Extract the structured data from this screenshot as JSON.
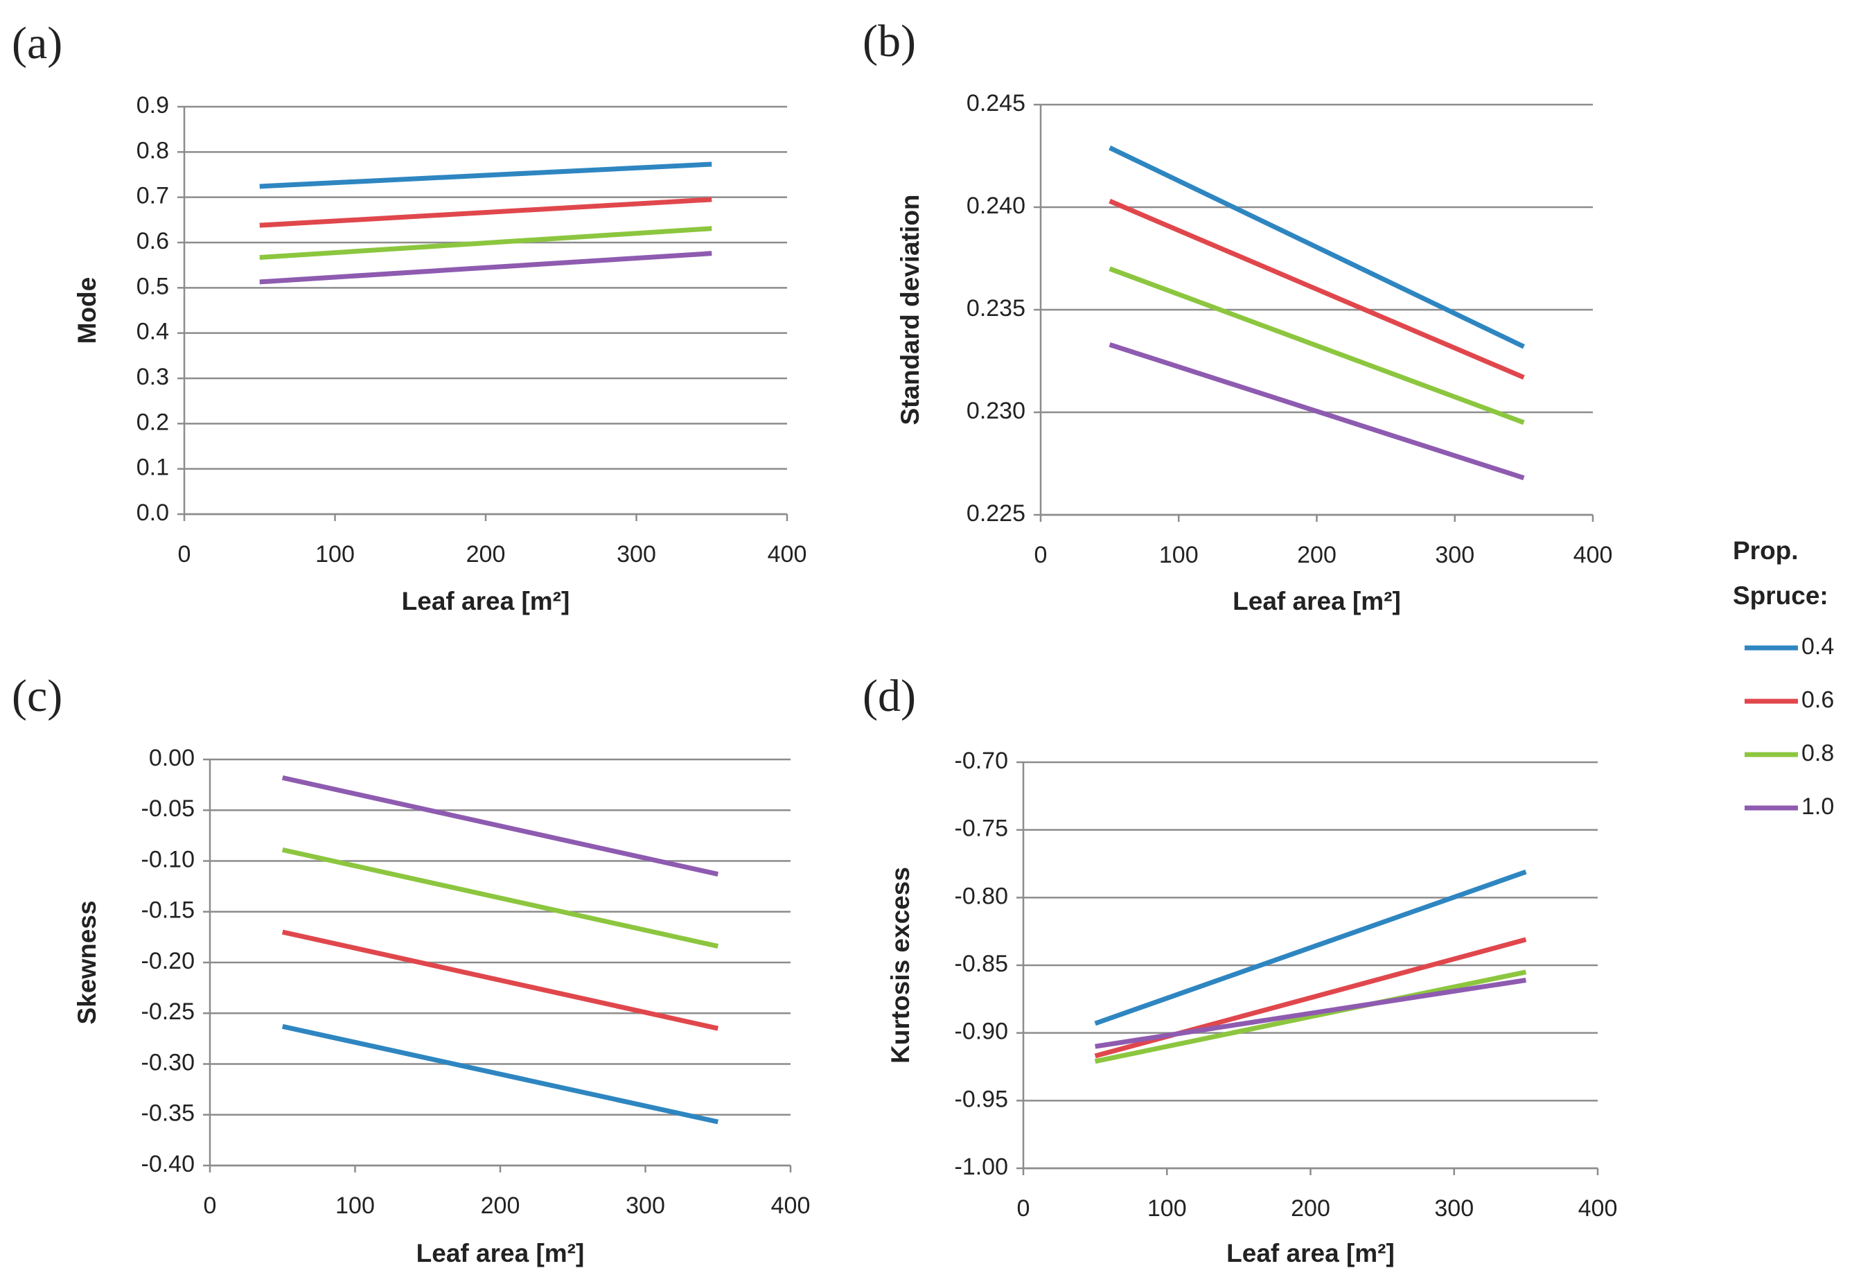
{
  "chart_data": [
    {
      "type": "line",
      "label": "(a)",
      "xlabel": "Leaf area [m²]",
      "ylabel": "Mode",
      "x": [
        50,
        350
      ],
      "xlim": [
        0,
        400
      ],
      "xticks": [
        0,
        100,
        200,
        300,
        400
      ],
      "ylim": [
        0,
        0.9
      ],
      "yticks": [
        {
          "value": 0,
          "label": "0.0"
        },
        0.1,
        0.2,
        0.3,
        0.4,
        0.5,
        0.6,
        0.7,
        0.8,
        0.9
      ],
      "grid": true,
      "series": [
        {
          "color": "#2e86c1",
          "values": [
            0.724,
            0.773
          ]
        },
        {
          "color": "#e0474c",
          "values": [
            0.638,
            0.695
          ]
        },
        {
          "color": "#8cc63f",
          "values": [
            0.567,
            0.631
          ]
        },
        {
          "color": "#8e5bb0",
          "values": [
            0.513,
            0.576
          ]
        }
      ]
    },
    {
      "type": "line",
      "label": "(b)",
      "xlabel": "Leaf area [m²]",
      "ylabel": "Standard deviation",
      "x": [
        50,
        350
      ],
      "xlim": [
        0,
        400
      ],
      "xticks": [
        0,
        100,
        200,
        300,
        400
      ],
      "ylim": [
        0.225,
        0.245
      ],
      "yticks": [
        0.225,
        {
          "value": 0.23,
          "label": "0.230"
        },
        0.235,
        {
          "value": 0.24,
          "label": "0.240"
        },
        0.245
      ],
      "grid": true,
      "series": [
        {
          "color": "#2e86c1",
          "values": [
            0.2429,
            0.2332
          ]
        },
        {
          "color": "#e0474c",
          "values": [
            0.2403,
            0.2317
          ]
        },
        {
          "color": "#8cc63f",
          "values": [
            0.237,
            0.2295
          ]
        },
        {
          "color": "#8e5bb0",
          "values": [
            0.2333,
            0.2268
          ]
        }
      ]
    },
    {
      "type": "line",
      "label": "(c)",
      "xlabel": "Leaf area [m²]",
      "ylabel": "Skewness",
      "x": [
        50,
        350
      ],
      "xlim": [
        0,
        400
      ],
      "xticks": [
        0,
        100,
        200,
        300,
        400
      ],
      "ylim": [
        -0.4,
        0
      ],
      "yticks": [
        {
          "value": -0.4,
          "label": "-0.40"
        },
        -0.35,
        {
          "value": -0.3,
          "label": "-0.30"
        },
        -0.25,
        {
          "value": -0.2,
          "label": "-0.20"
        },
        -0.15,
        {
          "value": -0.1,
          "label": "-0.10"
        },
        -0.05,
        {
          "value": 0,
          "label": "0.00"
        }
      ],
      "grid": true,
      "series": [
        {
          "color": "#2e86c1",
          "values": [
            -0.263,
            -0.357
          ]
        },
        {
          "color": "#e0474c",
          "values": [
            -0.17,
            -0.265
          ]
        },
        {
          "color": "#8cc63f",
          "values": [
            -0.089,
            -0.184
          ]
        },
        {
          "color": "#8e5bb0",
          "values": [
            -0.018,
            -0.113
          ]
        }
      ]
    },
    {
      "type": "line",
      "label": "(d)",
      "xlabel": "Leaf area [m²]",
      "ylabel": "Kurtosis excess",
      "x": [
        50,
        350
      ],
      "xlim": [
        0,
        400
      ],
      "xticks": [
        0,
        100,
        200,
        300,
        400
      ],
      "ylim": [
        -1,
        -0.7
      ],
      "yticks": [
        {
          "value": -1,
          "label": "-1.00"
        },
        -0.95,
        {
          "value": -0.9,
          "label": "-0.90"
        },
        -0.85,
        {
          "value": -0.8,
          "label": "-0.80"
        },
        -0.75,
        {
          "value": -0.7,
          "label": "-0.70"
        }
      ],
      "grid": true,
      "series": [
        {
          "color": "#2e86c1",
          "values": [
            -0.893,
            -0.781
          ]
        },
        {
          "color": "#e0474c",
          "values": [
            -0.917,
            -0.831
          ]
        },
        {
          "color": "#8cc63f",
          "values": [
            -0.921,
            -0.855
          ]
        },
        {
          "color": "#8e5bb0",
          "values": [
            -0.91,
            -0.861
          ]
        }
      ]
    }
  ],
  "legend": {
    "title": [
      "Prop.",
      "Spruce:"
    ],
    "items": [
      {
        "label": "0.4",
        "color": "#2e86c1"
      },
      {
        "label": "0.6",
        "color": "#e0474c"
      },
      {
        "label": "0.8",
        "color": "#8cc63f"
      },
      {
        "label": "1.0",
        "color": "#8e5bb0"
      }
    ]
  }
}
